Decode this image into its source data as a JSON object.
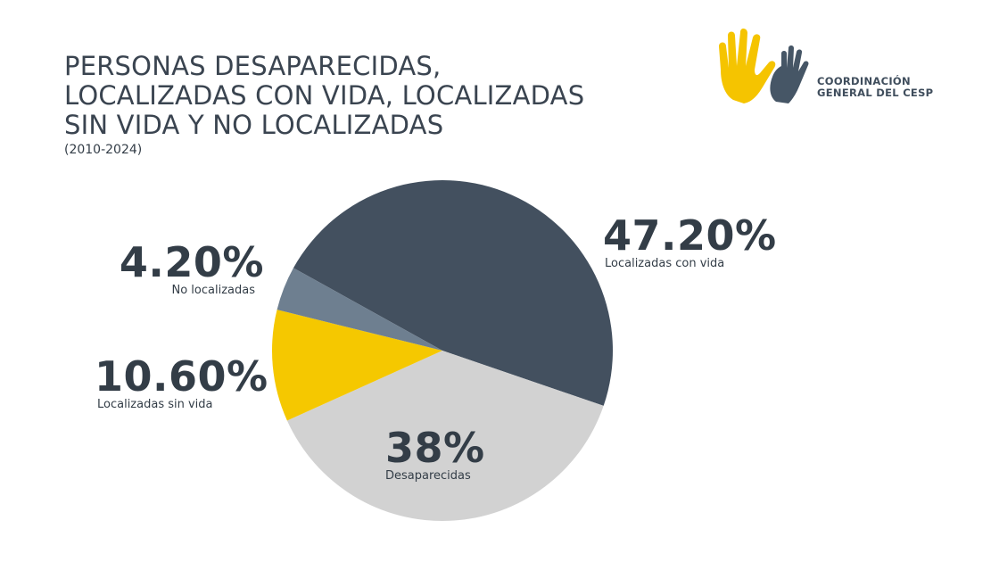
{
  "header": {
    "title_lines": [
      "PERSONAS DESAPARECIDAS,",
      "LOCALIZADAS CON VIDA, LOCALIZADAS",
      "SIN VIDA Y NO LOCALIZADAS"
    ],
    "subtitle": "(2010-2024)"
  },
  "logo": {
    "line1": "COORDINACIÓN",
    "line2": "GENERAL DEL CESP",
    "colors": {
      "hand_front": "#f5c400",
      "hand_back": "#465666"
    }
  },
  "chart_data": {
    "type": "pie",
    "title": "PERSONAS DESAPARECIDAS, LOCALIZADAS CON VIDA, LOCALIZADAS SIN VIDA Y NO LOCALIZADAS",
    "subtitle": "(2010-2024)",
    "slices": [
      {
        "label": "Localizadas con vida",
        "value": 47.2,
        "display": "47.20%",
        "color": "#43505f"
      },
      {
        "label": "Desaparecidas",
        "value": 38.0,
        "display": "38%",
        "color": "#d2d2d2"
      },
      {
        "label": "Localizadas sin vida",
        "value": 10.6,
        "display": "10.60%",
        "color": "#f5c800"
      },
      {
        "label": "No localizadas",
        "value": 4.2,
        "display": "4.20%",
        "color": "#6e7f90"
      }
    ],
    "legend": "none"
  }
}
